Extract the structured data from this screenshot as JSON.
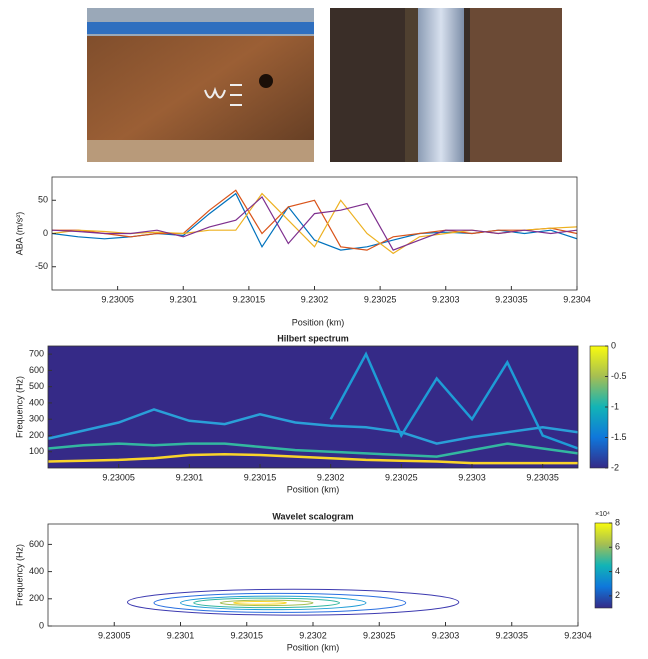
{
  "chart_data": [
    {
      "type": "line",
      "ylabel": "ABA (m/s²)",
      "xlabel": "Position (km)",
      "xlim": [
        9.23,
        9.2304
      ],
      "xticks": [
        9.23005,
        9.2301,
        9.23015,
        9.2302,
        9.23025,
        9.2303,
        9.23035,
        9.2304
      ],
      "ylim": [
        -85,
        85
      ],
      "yticks": [
        -50,
        0,
        50
      ],
      "x": [
        9.23,
        9.23002,
        9.23004,
        9.23006,
        9.23008,
        9.2301,
        9.23012,
        9.23014,
        9.23016,
        9.23018,
        9.2302,
        9.23022,
        9.23024,
        9.23026,
        9.23028,
        9.2303,
        9.23032,
        9.23034,
        9.23036,
        9.23038,
        9.2304
      ],
      "series": [
        {
          "color": "#0072bd",
          "values": [
            0,
            -5,
            -8,
            -5,
            0,
            -3,
            30,
            60,
            -20,
            40,
            -10,
            -25,
            -20,
            -10,
            0,
            2,
            0,
            5,
            0,
            5,
            -8
          ]
        },
        {
          "color": "#d95319",
          "values": [
            5,
            5,
            0,
            -5,
            0,
            0,
            35,
            65,
            0,
            40,
            50,
            -20,
            -25,
            -5,
            0,
            5,
            0,
            5,
            5,
            8,
            0
          ]
        },
        {
          "color": "#edb120",
          "values": [
            0,
            5,
            3,
            0,
            2,
            0,
            5,
            5,
            60,
            20,
            -20,
            50,
            0,
            -30,
            -5,
            0,
            5,
            0,
            5,
            8,
            10
          ]
        },
        {
          "color": "#7e2f8e",
          "values": [
            5,
            3,
            0,
            0,
            5,
            -5,
            10,
            20,
            55,
            -15,
            30,
            35,
            45,
            -25,
            -10,
            5,
            5,
            0,
            5,
            0,
            5
          ]
        }
      ]
    },
    {
      "type": "heatmap",
      "title": "Hilbert spectrum",
      "ylabel": "Frequency (Hz)",
      "xlabel": "Position (km)",
      "xlim": [
        9.23,
        9.230375
      ],
      "xticks": [
        9.23005,
        9.2301,
        9.23015,
        9.2302,
        9.23025,
        9.2303,
        9.23035
      ],
      "ylim": [
        0,
        750
      ],
      "yticks": [
        100,
        200,
        300,
        400,
        500,
        600,
        700
      ],
      "background": "#352a87",
      "clim": [
        -2,
        0
      ],
      "cticks": [
        0,
        -0.5,
        -1,
        -1.5,
        -2
      ],
      "x": [
        9.23,
        9.230025,
        9.23005,
        9.230075,
        9.2301,
        9.230125,
        9.23015,
        9.230175,
        9.2302,
        9.230225,
        9.23025,
        9.230275,
        9.2303,
        9.230325,
        9.23035,
        9.230375
      ],
      "series": [
        {
          "color": "#2a9fd8",
          "values": [
            180,
            230,
            280,
            360,
            290,
            270,
            330,
            280,
            260,
            250,
            220,
            150,
            190,
            220,
            250,
            220
          ]
        },
        {
          "color": "#33b7a0",
          "values": [
            120,
            140,
            150,
            140,
            150,
            150,
            130,
            110,
            100,
            90,
            80,
            70,
            110,
            150,
            120,
            90
          ]
        },
        {
          "color": "#f9d42a",
          "values": [
            40,
            45,
            50,
            60,
            80,
            85,
            80,
            70,
            60,
            50,
            45,
            40,
            30,
            30,
            30,
            30
          ]
        },
        {
          "color": "#1e9cd6",
          "values": [
            null,
            null,
            null,
            null,
            null,
            null,
            null,
            null,
            300,
            700,
            200,
            550,
            300,
            650,
            200,
            120
          ]
        }
      ]
    },
    {
      "type": "contour",
      "title": "Wavelet scalogram",
      "ylabel": "Frequency (Hz)",
      "xlabel": "Position (km)",
      "xlim": [
        9.23,
        9.2304
      ],
      "xticks": [
        9.23005,
        9.2301,
        9.23015,
        9.2302,
        9.23025,
        9.2303,
        9.23035,
        9.2304
      ],
      "ylim": [
        0,
        750
      ],
      "yticks": [
        0,
        200,
        400,
        600
      ],
      "clim": [
        10000,
        80000
      ],
      "cticks": [
        {
          "value": 20000,
          "label": "2"
        },
        {
          "value": 40000,
          "label": "4"
        },
        {
          "value": 60000,
          "label": "6"
        },
        {
          "value": 80000,
          "label": "8"
        }
      ],
      "cmultiplier": "×10⁴",
      "contours": [
        {
          "level": 10000,
          "color": "#3d3ab0",
          "x": [
            9.23006,
            9.23031
          ],
          "y": [
            80,
            270
          ]
        },
        {
          "level": 20000,
          "color": "#2a6fe0",
          "x": [
            9.23008,
            9.23027
          ],
          "y": [
            100,
            240
          ]
        },
        {
          "level": 35000,
          "color": "#1e9cd6",
          "x": [
            9.2301,
            9.23024
          ],
          "y": [
            120,
            220
          ]
        },
        {
          "level": 50000,
          "color": "#33b7a0",
          "x": [
            9.23011,
            9.23022
          ],
          "y": [
            135,
            205
          ]
        },
        {
          "level": 65000,
          "color": "#a5be53",
          "x": [
            9.23013,
            9.2302
          ],
          "y": [
            150,
            190
          ]
        },
        {
          "level": 75000,
          "color": "#f9d42a",
          "x": [
            9.23014,
            9.23018
          ],
          "y": [
            160,
            180
          ]
        }
      ]
    }
  ]
}
